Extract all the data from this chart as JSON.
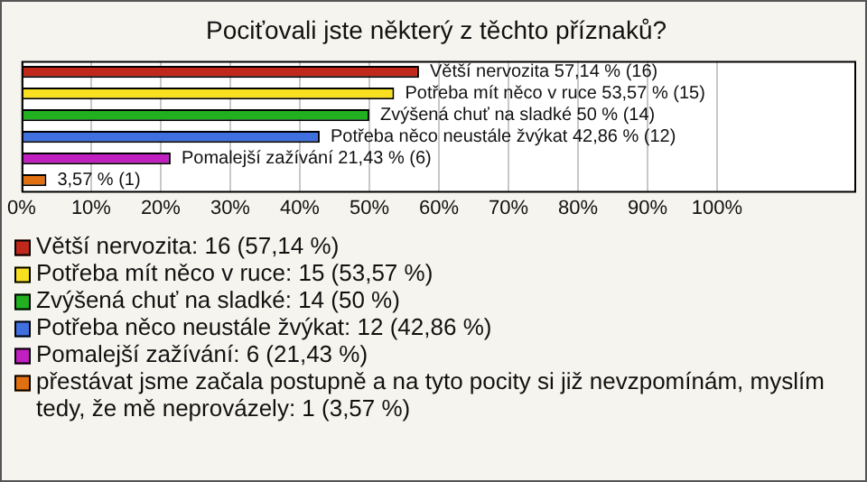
{
  "chart_data": {
    "type": "bar",
    "orientation": "horizontal",
    "title": "Pociťovali jste některý z těchto příznaků?",
    "categories": [
      null,
      null,
      null,
      null,
      null,
      null
    ],
    "series": [
      {
        "name": "Větší nervozita: 16 (57,14 %)",
        "color": "#c0281c",
        "values": [
          57.14,
          null,
          null,
          null,
          null,
          null
        ],
        "value_labels": [
          "Větší nervozita 57,14 % (16)",
          null,
          null,
          null,
          null,
          null
        ]
      },
      {
        "name": "Potřeba mít něco v ruce: 15 (53,57 %)",
        "color": "#f8e020",
        "values": [
          null,
          53.57,
          null,
          null,
          null,
          null
        ],
        "value_labels": [
          null,
          "Potřeba mít něco v ruce 53,57 % (15)",
          null,
          null,
          null,
          null
        ]
      },
      {
        "name": "Zvýšená chuť na sladké: 14 (50 %)",
        "color": "#20b020",
        "values": [
          null,
          null,
          50,
          null,
          null,
          null
        ],
        "value_labels": [
          null,
          null,
          "Zvýšená chuť na sladké 50 % (14)",
          null,
          null,
          null
        ]
      },
      {
        "name": "Potřeba něco neustále žvýkat: 12 (42,86 %)",
        "color": "#4070e0",
        "values": [
          null,
          null,
          null,
          42.86,
          null,
          null
        ],
        "value_labels": [
          null,
          null,
          null,
          "Potřeba něco neustále žvýkat 42,86 % (12)",
          null,
          null
        ]
      },
      {
        "name": "Pomalejší zažívání: 6 (21,43 %)",
        "color": "#c020c0",
        "values": [
          null,
          null,
          null,
          null,
          21.43,
          null
        ],
        "value_labels": [
          null,
          null,
          null,
          null,
          "Pomalejší zažívání 21,43 % (6)",
          null
        ]
      },
      {
        "name": "přestávat jsme začala postupně a na tyto pocity si již nevzpomínám, myslím tedy, že mě neprovázely: 1 (3,57 %)",
        "color": "#e07010",
        "values": [
          null,
          null,
          null,
          null,
          null,
          3.57
        ],
        "value_labels": [
          null,
          null,
          null,
          null,
          null,
          "3,57 % (1)"
        ]
      }
    ],
    "xlim": [
      0,
      120
    ],
    "xticks": [
      {
        "value": 0,
        "label": "0%"
      },
      {
        "value": 10,
        "label": "10%"
      },
      {
        "value": 20,
        "label": "20%"
      },
      {
        "value": 30,
        "label": "30%"
      },
      {
        "value": 40,
        "label": "40%"
      },
      {
        "value": 50,
        "label": "50%"
      },
      {
        "value": 60,
        "label": "60%"
      },
      {
        "value": 70,
        "label": "70%"
      },
      {
        "value": 80,
        "label": "80%"
      },
      {
        "value": 90,
        "label": "90%"
      },
      {
        "value": 100,
        "label": "100%"
      }
    ],
    "grid": "x",
    "legend": "bottom",
    "tick_labels": "x"
  }
}
